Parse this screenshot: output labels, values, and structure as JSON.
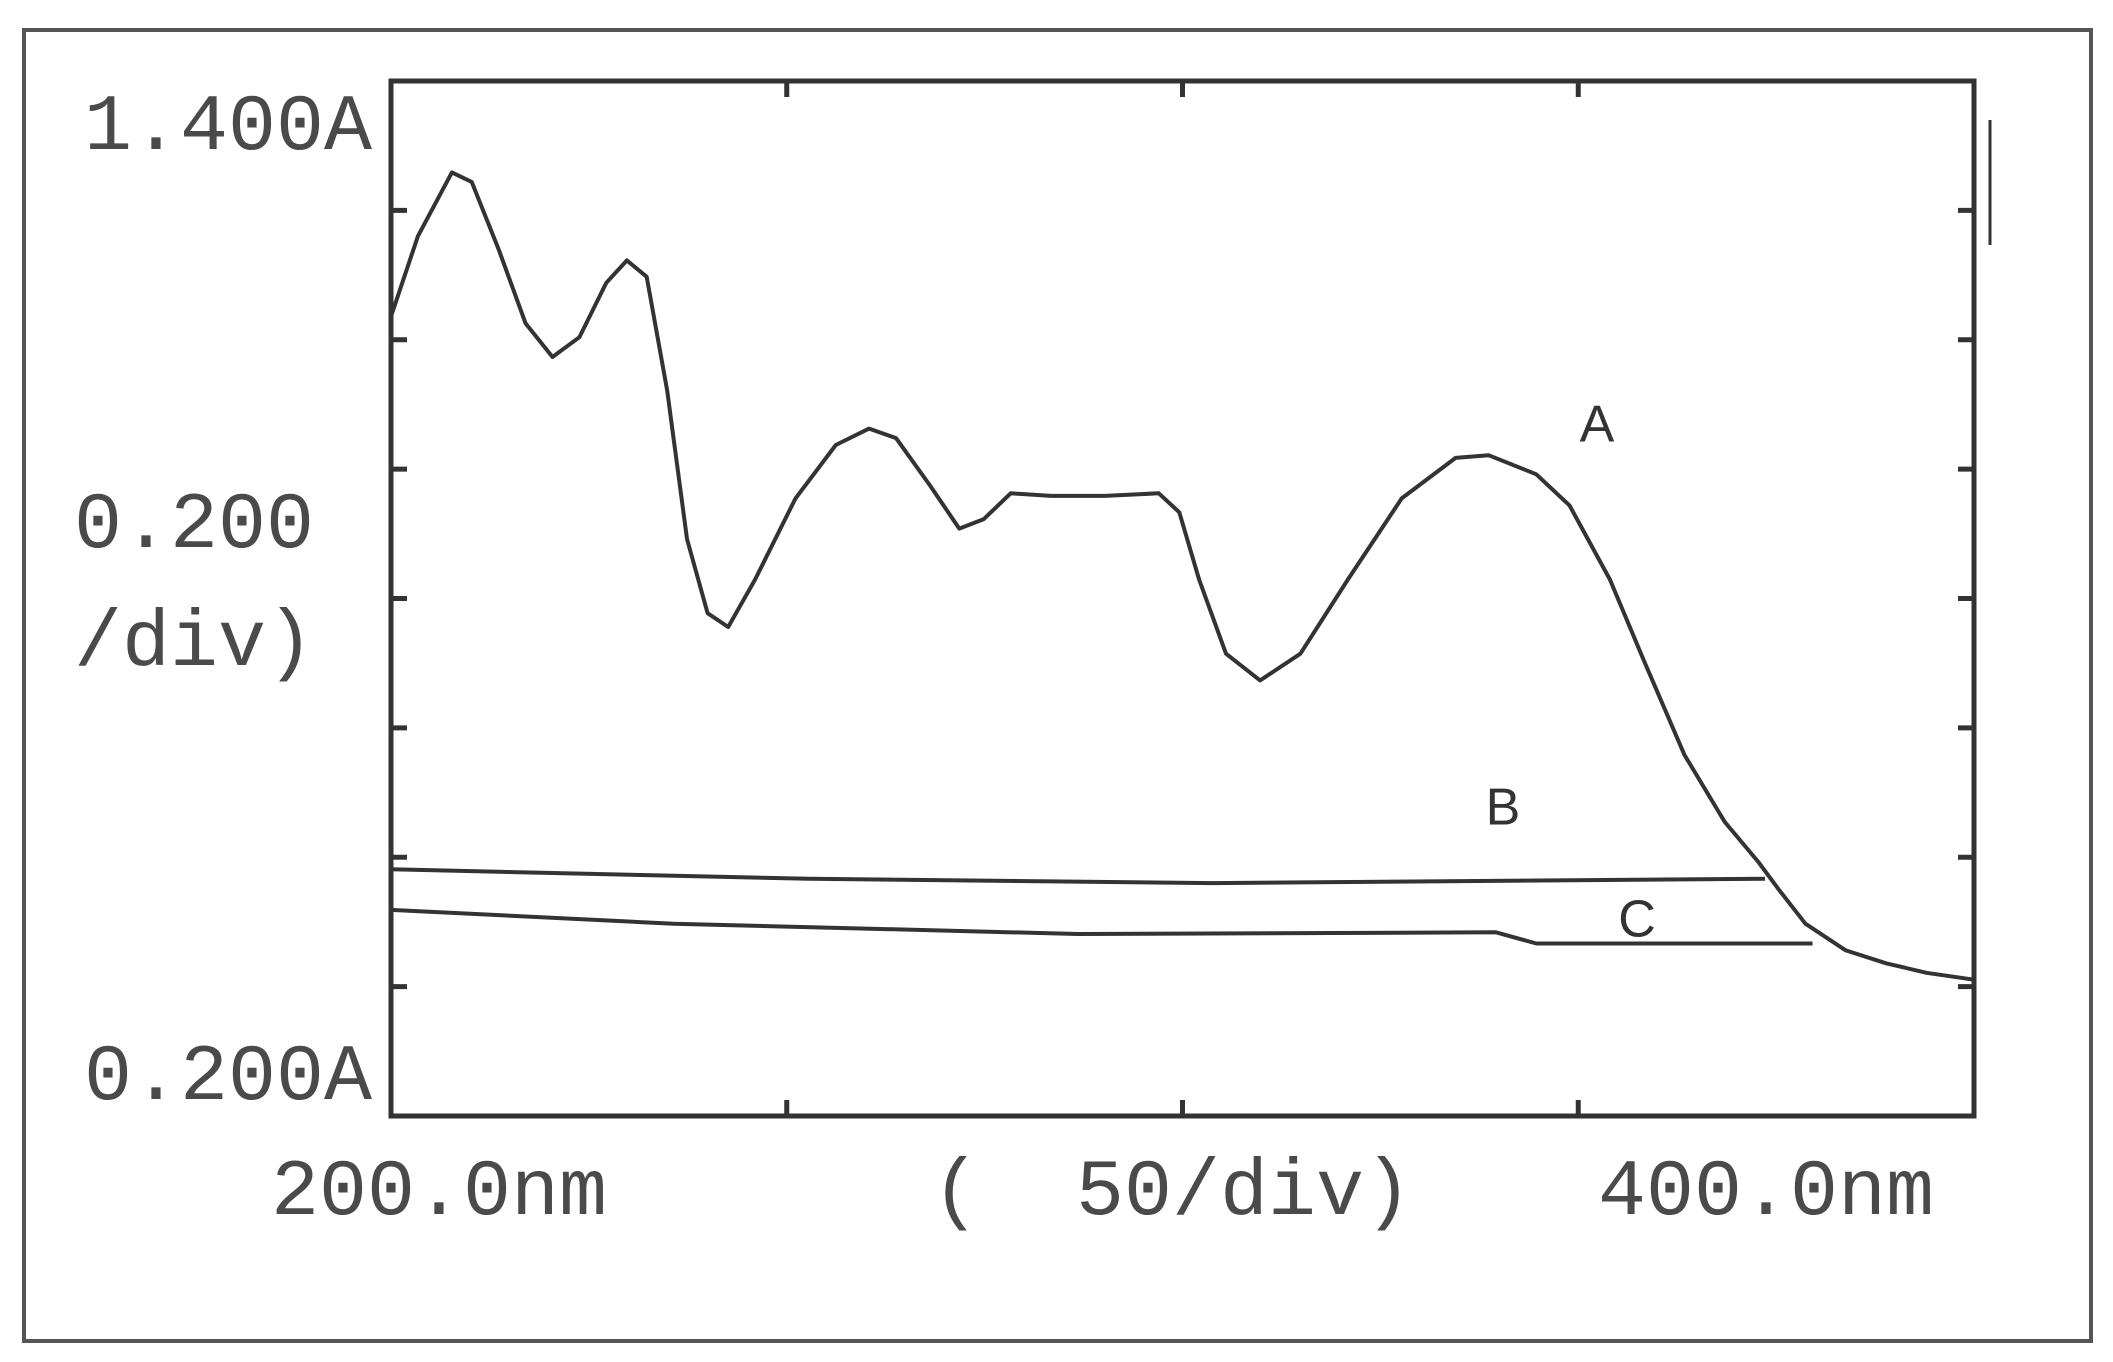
{
  "chart_data": {
    "type": "line",
    "xlim": [
      200,
      400
    ],
    "ylim": [
      0.2,
      1.4
    ],
    "xticks": [
      {
        "value": 200,
        "label": "200.0nm"
      },
      {
        "value": 400,
        "label": "400.0nm"
      }
    ],
    "x_minor_ticks": [
      250,
      300,
      350
    ],
    "yticks": [
      {
        "value": 0.2,
        "label": "0.200A"
      },
      {
        "value": 1.4,
        "label": "1.400A"
      }
    ],
    "y_minor_ticks": [
      0.35,
      0.5,
      0.65,
      0.8,
      0.95,
      1.1,
      1.25
    ],
    "x_scale_label": "(  50/div)",
    "y_scale_label": [
      "0.200",
      "/div)"
    ],
    "series": [
      {
        "name": "A",
        "color": "#333333",
        "x": [
          200,
          203.4,
          207.7,
          210.2,
          213.6,
          217.0,
          220.4,
          223.8,
          227.2,
          229.8,
          232.3,
          234.9,
          237.4,
          240.0,
          242.6,
          246.0,
          251.1,
          256.2,
          260.4,
          263.8,
          268.1,
          271.8,
          274.9,
          278.3,
          283.4,
          290.2,
          297.0,
          299.6,
          302.1,
          305.5,
          309.8,
          314.9,
          320.9,
          327.7,
          334.5,
          338.7,
          344.7,
          348.9,
          354.0,
          358.3,
          363.4,
          368.5,
          372.8,
          375.3,
          378.7,
          383.8,
          388.9,
          394.0,
          400
        ],
        "values": [
          1.127,
          1.22,
          1.294,
          1.283,
          1.205,
          1.119,
          1.08,
          1.103,
          1.166,
          1.192,
          1.173,
          1.041,
          0.869,
          0.783,
          0.767,
          0.822,
          0.916,
          0.978,
          0.997,
          0.986,
          0.931,
          0.881,
          0.892,
          0.922,
          0.919,
          0.919,
          0.922,
          0.9,
          0.822,
          0.736,
          0.705,
          0.736,
          0.822,
          0.916,
          0.963,
          0.966,
          0.944,
          0.908,
          0.822,
          0.728,
          0.619,
          0.541,
          0.494,
          0.463,
          0.423,
          0.392,
          0.377,
          0.366,
          0.358
        ]
      },
      {
        "name": "B",
        "color": "#333333",
        "x": [
          200,
          252.8,
          303.8,
          373.6
        ],
        "values": [
          0.486,
          0.475,
          0.47,
          0.475
        ]
      },
      {
        "name": "C",
        "color": "#333333",
        "x": [
          200,
          235.7,
          286.8,
          339.6,
          344.7,
          379.6
        ],
        "values": [
          0.439,
          0.423,
          0.411,
          0.413,
          0.4,
          0.4
        ]
      }
    ]
  }
}
